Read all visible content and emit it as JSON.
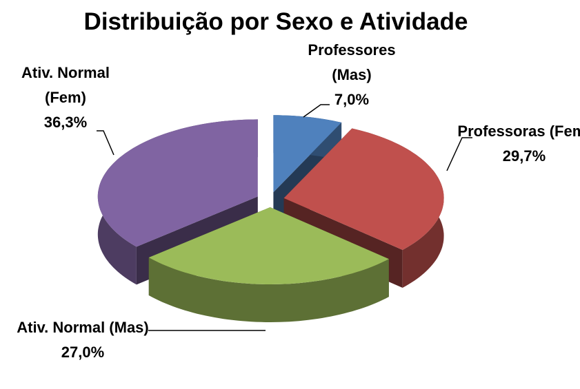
{
  "chart_data": {
    "type": "pie",
    "title": "Distribuição por Sexo e Atividade",
    "categories": [
      "Professores (Mas)",
      "Professoras (Fem)",
      "Ativ. Normal (Mas)",
      "Ativ. Normal (Fem)"
    ],
    "values": [
      7.0,
      29.7,
      27.0,
      36.3
    ],
    "value_labels": [
      "7,0%",
      "29,7%",
      "27,0%",
      "36,3%"
    ],
    "colors": [
      "#4f81bd",
      "#c0504d",
      "#9bbb59",
      "#8064a2"
    ]
  }
}
